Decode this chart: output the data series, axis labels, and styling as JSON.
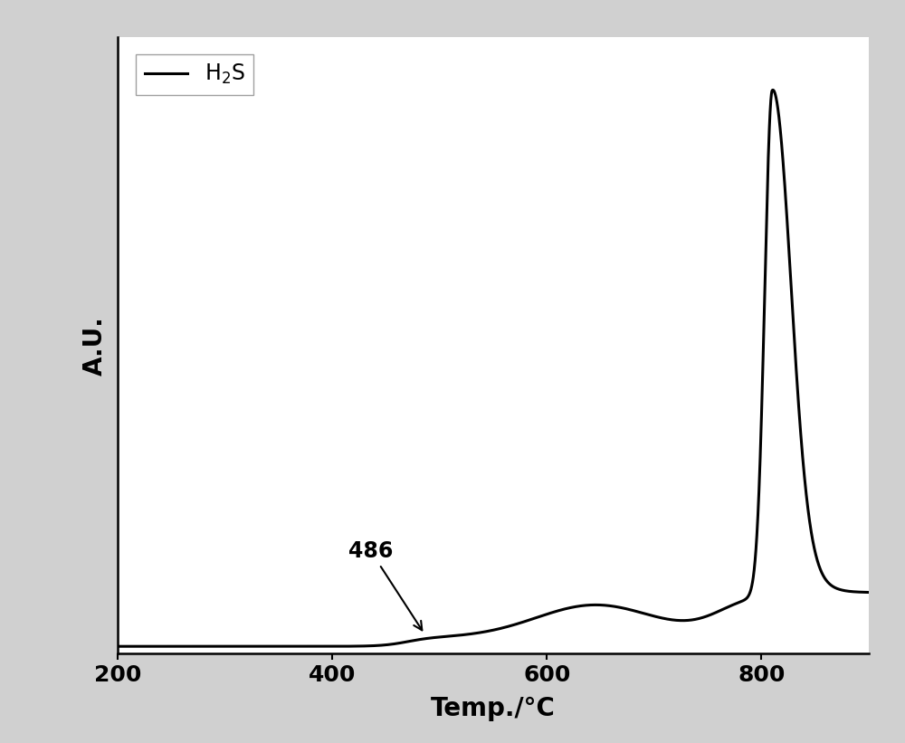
{
  "xlabel": "Temp./°C",
  "ylabel": "A.U.",
  "legend_label": "H$_2$S",
  "annotation_text": "486",
  "xlim": [
    200,
    900
  ],
  "ylim": [
    0.0,
    1.05
  ],
  "xticks": [
    200,
    400,
    600,
    800
  ],
  "line_color": "#000000",
  "line_width": 2.2,
  "background_color": "#ffffff",
  "outer_background": "#d0d0d0",
  "label_fontsize": 20,
  "tick_fontsize": 18,
  "legend_fontsize": 17,
  "annotation_fontsize": 17
}
